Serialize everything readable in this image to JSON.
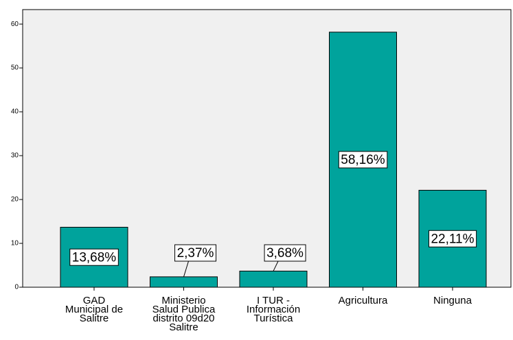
{
  "chart_data": {
    "type": "bar",
    "categories": [
      "GAD\nMunicipal de\nSalitre",
      "Ministerio\nSalud Publica\ndistrito 09d20\nSalitre",
      "I TUR -\nInformación\nTurística",
      "Agricultura",
      "Ninguna"
    ],
    "values": [
      13.68,
      2.37,
      3.68,
      58.16,
      22.11
    ],
    "value_labels": [
      "13,68%",
      "2,37%",
      "3,68%",
      "58,16%",
      "22,11%"
    ],
    "color": "#00a39c",
    "ylim": [
      0,
      63.3
    ],
    "yticks": [
      0,
      10,
      20,
      30,
      40,
      50,
      60
    ],
    "grid": false
  }
}
